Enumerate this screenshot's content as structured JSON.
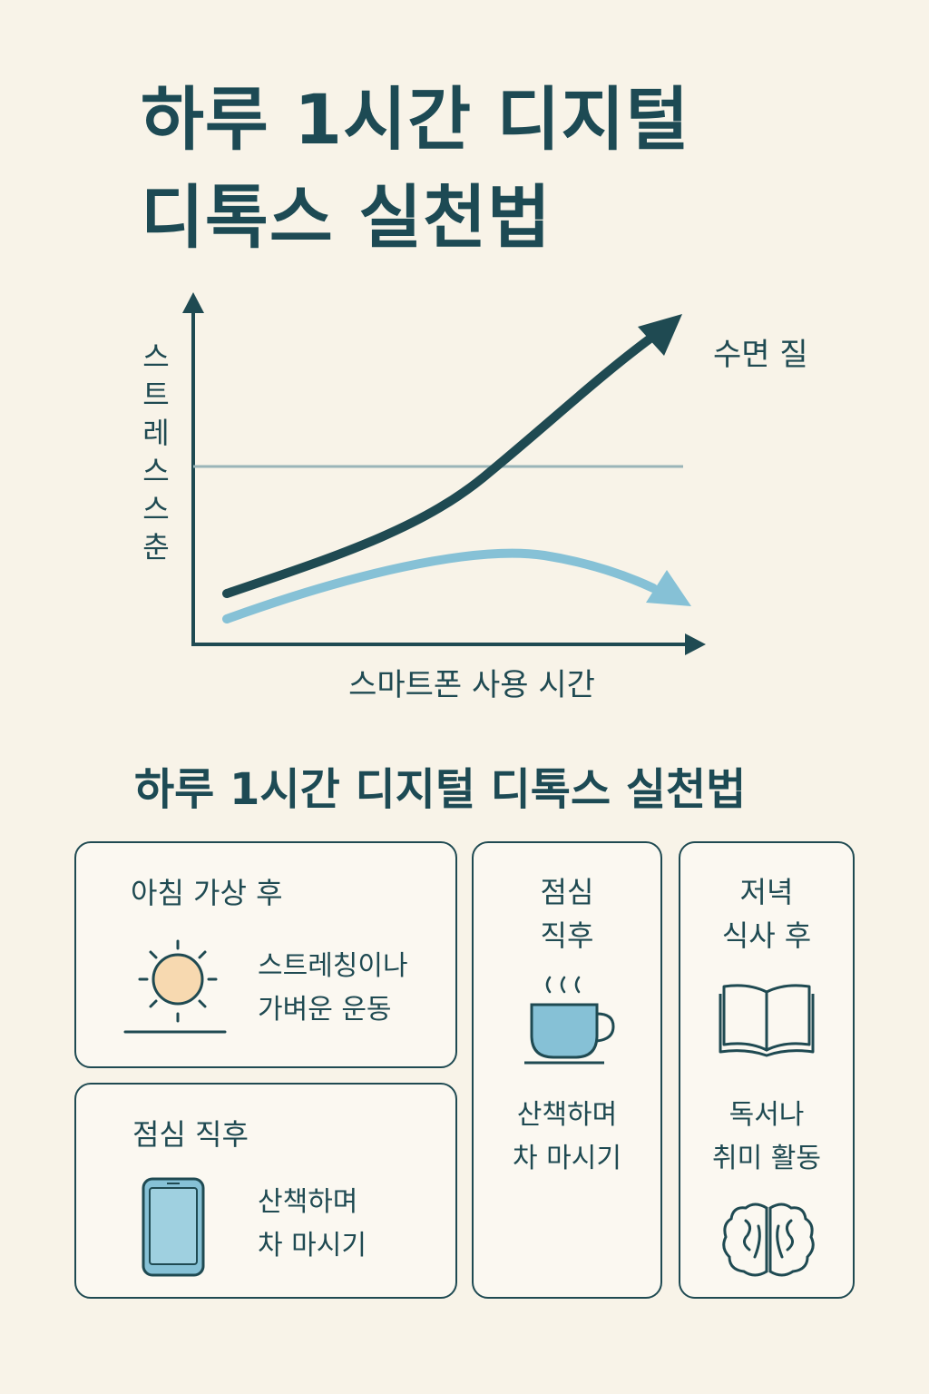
{
  "title": {
    "line1": "하루 1시간 디지털",
    "line2": "디톡스 실천법"
  },
  "chart_data": {
    "type": "line",
    "ylabel": "스트레스스춘",
    "xlabel": "스마트폰 사용 시간",
    "series": [
      {
        "name": "수면 질",
        "trend": "increasing"
      },
      {
        "trend": "rising then falling"
      }
    ]
  },
  "subtitle": "하루 1시간 디지털 디톡스 실천법",
  "cards": [
    {
      "title": "아침 가상 후",
      "text": [
        "스트레칭이나",
        "가벼운 운동"
      ],
      "icon": "sun-icon"
    },
    {
      "title": "점심 직후",
      "text": [
        "산책하며",
        "차 마시기"
      ],
      "icon": "smartphone-icon"
    },
    {
      "title": [
        "점심",
        "직후"
      ],
      "text": [
        "산책하며",
        "차 마시기"
      ],
      "icon": "tea-cup-icon"
    },
    {
      "title": [
        "저녁",
        "식사 후"
      ],
      "text": [
        "독서나",
        "취미 활동"
      ],
      "icon": "book-icon",
      "icon2": "brain-icon"
    }
  ],
  "colors": {
    "dark": "#1f4a52",
    "light": "#86c1d6",
    "background": "#f8f3e8",
    "sun": "#f7d9b0"
  }
}
